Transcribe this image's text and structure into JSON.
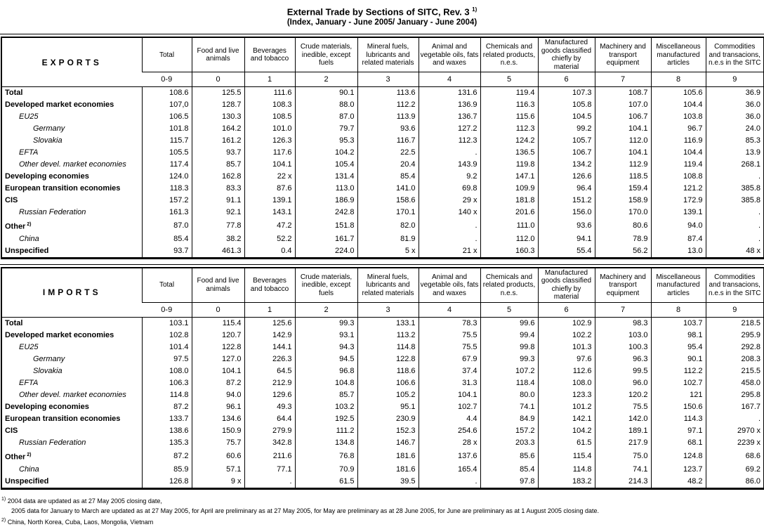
{
  "title": "External Trade by Sections of SITC, Rev. 3",
  "title_ref": "1)",
  "subtitle": "(Index, January - June 2005/ January - June 2004)",
  "columns": [
    {
      "label": "Total",
      "code": "0-9"
    },
    {
      "label": "Food and live animals",
      "code": "0"
    },
    {
      "label": "Beverages and tobacco",
      "code": "1"
    },
    {
      "label": "Crude materials, inedible, except fuels",
      "code": "2"
    },
    {
      "label": "Mineral fuels, lubricants and related materials",
      "code": "3"
    },
    {
      "label": "Animal and vegetable oils, fats and waxes",
      "code": "4"
    },
    {
      "label": "Chemicals and related products, n.e.s.",
      "code": "5"
    },
    {
      "label": "Manufactured goods classified chiefly by material",
      "code": "6"
    },
    {
      "label": "Machinery and transport equipment",
      "code": "7"
    },
    {
      "label": "Miscellaneous manufactured articles",
      "code": "8"
    },
    {
      "label": "Commodities and transacions, n.e.s in the SITC",
      "code": "9"
    }
  ],
  "tables": [
    {
      "title": "EXPORTS",
      "rows": [
        {
          "label": "Total",
          "style": "b",
          "sup": "",
          "values": [
            "108.6",
            "125.5",
            "111.6",
            "90.1",
            "113.6",
            "131.6",
            "119.4",
            "107.3",
            "108.7",
            "105.6",
            "36.9"
          ]
        },
        {
          "label": "Developed market economies",
          "style": "b",
          "sup": "",
          "values": [
            "107,0",
            "128.7",
            "108.3",
            "88.0",
            "112.2",
            "136.9",
            "116.3",
            "105.8",
            "107.0",
            "104.4",
            "36.0"
          ]
        },
        {
          "label": "EU25",
          "style": "i1",
          "sup": "",
          "values": [
            "106.5",
            "130.3",
            "108.5",
            "87.0",
            "113.9",
            "136.7",
            "115.6",
            "104.5",
            "106.7",
            "103.8",
            "36.0"
          ]
        },
        {
          "label": "Germany",
          "style": "i2",
          "sup": "",
          "values": [
            "101.8",
            "164.2",
            "101.0",
            "79.7",
            "93.6",
            "127.2",
            "112.3",
            "99.2",
            "104.1",
            "96.7",
            "24.0"
          ]
        },
        {
          "label": "Slovakia",
          "style": "i2",
          "sup": "",
          "values": [
            "115.7",
            "161.2",
            "126.3",
            "95.3",
            "116.7",
            "112.3",
            "124.2",
            "105.7",
            "112.0",
            "116.9",
            "85.3"
          ]
        },
        {
          "label": "EFTA",
          "style": "i1",
          "sup": "",
          "values": [
            "105.5",
            "93.7",
            "117.6",
            "104.2",
            "22.5",
            ".",
            "136.5",
            "106.7",
            "104.1",
            "104.4",
            "13.9"
          ]
        },
        {
          "label": "Other devel. market economies",
          "style": "i1",
          "sup": "",
          "values": [
            "117.4",
            "85.7",
            "104.1",
            "105.4",
            "20.4",
            "143.9",
            "119.8",
            "134.2",
            "112.9",
            "119.4",
            "268.1"
          ]
        },
        {
          "label": "Developing economies",
          "style": "b",
          "sup": "",
          "values": [
            "124.0",
            "162.8",
            "22 x",
            "131.4",
            "85.4",
            "9.2",
            "147.1",
            "126.6",
            "118.5",
            "108.8",
            "."
          ]
        },
        {
          "label": "European transition economies",
          "style": "b",
          "sup": "",
          "values": [
            "118.3",
            "83.3",
            "87.6",
            "113.0",
            "141.0",
            "69.8",
            "109.9",
            "96.4",
            "159.4",
            "121.2",
            "385.8"
          ]
        },
        {
          "label": "CIS",
          "style": "b",
          "sup": "",
          "values": [
            "157.2",
            "91.1",
            "139.1",
            "186.9",
            "158.6",
            "29 x",
            "181.8",
            "151.2",
            "158.9",
            "172.9",
            "385.8"
          ]
        },
        {
          "label": "Russian Federation",
          "style": "i1",
          "sup": "",
          "values": [
            "161.3",
            "92.1",
            "143.1",
            "242.8",
            "170.1",
            "140 x",
            "201.6",
            "156.0",
            "170.0",
            "139.1",
            "."
          ]
        },
        {
          "label": "Other",
          "style": "b",
          "sup": "2)",
          "values": [
            "87.0",
            "77.8",
            "47.2",
            "151.8",
            "82.0",
            ".",
            "111.0",
            "93.6",
            "80.6",
            "94.0",
            "."
          ]
        },
        {
          "label": "China",
          "style": "i1",
          "sup": "",
          "values": [
            "85.4",
            "38.2",
            "52.2",
            "161.7",
            "81.9",
            ".",
            "112.0",
            "94.1",
            "78.9",
            "87.4",
            "."
          ]
        },
        {
          "label": "Unspecified",
          "style": "b",
          "sup": "",
          "values": [
            "93.7",
            "461.3",
            "0.4",
            "224.0",
            "5 x",
            "21 x",
            "160.3",
            "55.4",
            "56.2",
            "13.0",
            "48 x"
          ]
        }
      ]
    },
    {
      "title": "IMPORTS",
      "rows": [
        {
          "label": "Total",
          "style": "b",
          "sup": "",
          "values": [
            "103.1",
            "115.4",
            "125.6",
            "99.3",
            "133.1",
            "78.3",
            "99.6",
            "102.9",
            "98.3",
            "103.7",
            "218.5"
          ]
        },
        {
          "label": "Developed market economies",
          "style": "b",
          "sup": "",
          "values": [
            "102.8",
            "120.7",
            "142.9",
            "93.1",
            "113.2",
            "75.5",
            "99.4",
            "102.2",
            "103.0",
            "98.1",
            "295.9"
          ]
        },
        {
          "label": "EU25",
          "style": "i1",
          "sup": "",
          "values": [
            "101.4",
            "122.8",
            "144.1",
            "94.3",
            "114.8",
            "75.5",
            "99.8",
            "101.3",
            "100.3",
            "95.4",
            "292.8"
          ]
        },
        {
          "label": "Germany",
          "style": "i2",
          "sup": "",
          "values": [
            "97.5",
            "127.0",
            "226.3",
            "94.5",
            "122.8",
            "67.9",
            "99.3",
            "97.6",
            "96.3",
            "90.1",
            "208.3"
          ]
        },
        {
          "label": "Slovakia",
          "style": "i2",
          "sup": "",
          "values": [
            "108.0",
            "104.1",
            "64.5",
            "96.8",
            "118.6",
            "37.4",
            "107.2",
            "112.6",
            "99.5",
            "112.2",
            "215.5"
          ]
        },
        {
          "label": "EFTA",
          "style": "i1",
          "sup": "",
          "values": [
            "106.3",
            "87.2",
            "212.9",
            "104.8",
            "106.6",
            "31.3",
            "118.4",
            "108.0",
            "96.0",
            "102.7",
            "458.0"
          ]
        },
        {
          "label": "Other devel. market economies",
          "style": "i1",
          "sup": "",
          "values": [
            "114.8",
            "94.0",
            "129.6",
            "85.7",
            "105.2",
            "104.1",
            "80.0",
            "123.3",
            "120.2",
            "121",
            "295.8"
          ]
        },
        {
          "label": "Developing economies",
          "style": "b",
          "sup": "",
          "values": [
            "87.2",
            "96.1",
            "49.3",
            "103.2",
            "95.1",
            "102.7",
            "74.1",
            "101.2",
            "75.5",
            "150.6",
            "167.7"
          ]
        },
        {
          "label": "European transition economies",
          "style": "b",
          "sup": "",
          "values": [
            "133.7",
            "134.6",
            "64.4",
            "192.5",
            "230.9",
            "4.4",
            "84.9",
            "142.1",
            "142.0",
            "114.3",
            "."
          ]
        },
        {
          "label": "CIS",
          "style": "b",
          "sup": "",
          "values": [
            "138.6",
            "150.9",
            "279.9",
            "111.2",
            "152.3",
            "254.6",
            "157.2",
            "104.2",
            "189.1",
            "97.1",
            "2970 x"
          ]
        },
        {
          "label": "Russian Federation",
          "style": "i1",
          "sup": "",
          "values": [
            "135.3",
            "75.7",
            "342.8",
            "134.8",
            "146.7",
            "28 x",
            "203.3",
            "61.5",
            "217.9",
            "68.1",
            "2239 x"
          ]
        },
        {
          "label": "Other",
          "style": "b",
          "sup": "2)",
          "values": [
            "87.2",
            "60.6",
            "211.6",
            "76.8",
            "181.6",
            "137.6",
            "85.6",
            "115.4",
            "75.0",
            "124.8",
            "68.6"
          ]
        },
        {
          "label": "China",
          "style": "i1",
          "sup": "",
          "values": [
            "85.9",
            "57.1",
            "77.1",
            "70.9",
            "181.6",
            "165.4",
            "85.4",
            "114.8",
            "74.1",
            "123.7",
            "69.2"
          ]
        },
        {
          "label": "Unspecified",
          "style": "b",
          "sup": "",
          "values": [
            "126.8",
            "9 x",
            ".",
            "61.5",
            "39.5",
            ".",
            "97.8",
            "183.2",
            "214.3",
            "48.2",
            "86.0"
          ]
        }
      ]
    }
  ],
  "footnotes": [
    {
      "marker": "1)",
      "text": "2004 data are updated as at 27 May 2005 closing date,"
    },
    {
      "marker": "",
      "text": "2005 data for January to March are updated as at 27 May 2005, for April are preliminary as at 27 May 2005, for May are preliminary as at 28 June 2005, for June are preliminary as at 1 August 2005 closing date."
    },
    {
      "marker": "2)",
      "text": "China, North Korea, Cuba, Laos, Mongolia, Vietnam"
    }
  ]
}
